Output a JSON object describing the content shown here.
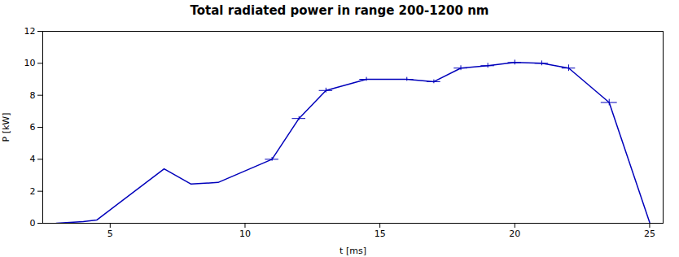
{
  "chart_data": {
    "type": "line",
    "title": "Total radiated power in range 200-1200 nm",
    "xlabel": "t [ms]",
    "ylabel": "P [kW]",
    "xlim": [
      2.5,
      25.5
    ],
    "ylim": [
      0,
      12
    ],
    "xticks": [
      5,
      10,
      15,
      20,
      25
    ],
    "yticks": [
      0,
      2,
      4,
      6,
      8,
      10,
      12
    ],
    "color": "#0000BB",
    "grid": false,
    "x": [
      3.0,
      4.0,
      4.5,
      7.0,
      8.0,
      9.0,
      11.0,
      12.0,
      13.0,
      14.5,
      16.0,
      17.0,
      18.0,
      19.0,
      20.0,
      21.0,
      22.0,
      23.5,
      25.0
    ],
    "values": [
      0.0,
      0.1,
      0.2,
      3.4,
      2.45,
      2.55,
      4.0,
      6.55,
      8.3,
      9.0,
      9.0,
      8.85,
      9.7,
      9.85,
      10.05,
      10.0,
      9.7,
      7.55,
      0.05
    ],
    "xerr": [
      0,
      0,
      0,
      0,
      0,
      0,
      0.25,
      0.25,
      0.25,
      0.25,
      0.25,
      0.25,
      0.25,
      0.25,
      0.25,
      0.25,
      0.25,
      0.3,
      0
    ],
    "yerr": [
      0,
      0,
      0,
      0,
      0,
      0,
      0.12,
      0.12,
      0.15,
      0.12,
      0.12,
      0.12,
      0.15,
      0.15,
      0.15,
      0.15,
      0.2,
      0.2,
      0
    ]
  }
}
